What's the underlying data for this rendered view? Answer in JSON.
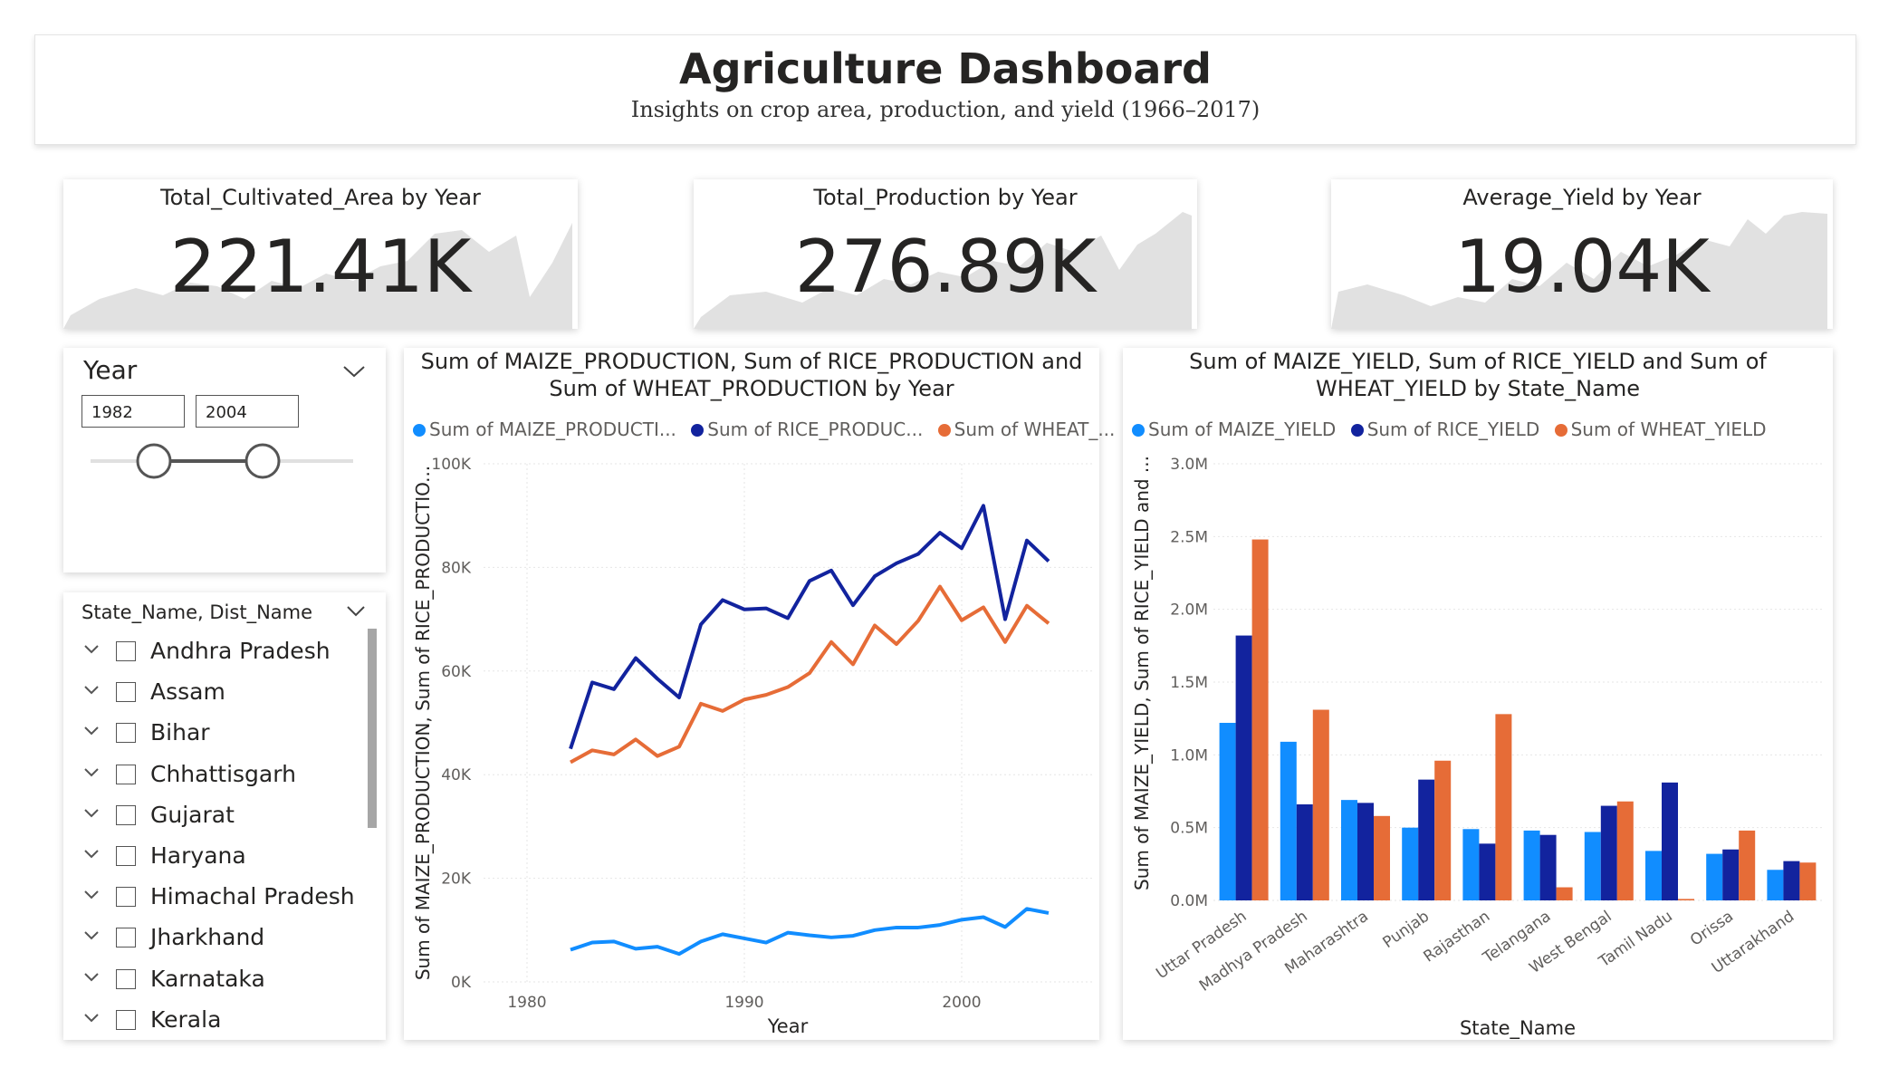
{
  "header": {
    "title": "Agriculture Dashboard",
    "subtitle": "Insights on crop area, production, and yield (1966–2017)"
  },
  "kpis": [
    {
      "title": "Total_Cultivated_Area by Year",
      "value": "221.41K"
    },
    {
      "title": "Total_Production by Year",
      "value": "276.89K"
    },
    {
      "title": "Average_Yield by Year",
      "value": "19.04K"
    }
  ],
  "year_slicer": {
    "title": "Year",
    "start": "1982",
    "end": "2004",
    "chevron_icon": "chevron-down-icon"
  },
  "state_slicer": {
    "title": "State_Name, Dist_Name",
    "items": [
      "Andhra Pradesh",
      "Assam",
      "Bihar",
      "Chhattisgarh",
      "Gujarat",
      "Haryana",
      "Himachal Pradesh",
      "Jharkhand",
      "Karnataka",
      "Kerala"
    ]
  },
  "line_chart": {
    "title_line1": "Sum of MAIZE_PRODUCTION, Sum of RICE_PRODUCTION and",
    "title_line2": "Sum of WHEAT_PRODUCTION by Year",
    "legend": [
      "Sum of MAIZE_PRODUCTI...",
      "Sum of RICE_PRODUC...",
      "Sum of WHEAT_..."
    ],
    "xlabel": "Year",
    "ylabel": "Sum of MAIZE_PRODUCTION, Sum of RICE_PRODUCTIO...",
    "yticks": [
      "0K",
      "20K",
      "40K",
      "60K",
      "80K",
      "100K"
    ],
    "xticks": [
      "1980",
      "1990",
      "2000"
    ]
  },
  "bar_chart": {
    "title_line1": "Sum of MAIZE_YIELD, Sum of RICE_YIELD and Sum of",
    "title_line2": "WHEAT_YIELD by State_Name",
    "legend": [
      "Sum of MAIZE_YIELD",
      "Sum of RICE_YIELD",
      "Sum of WHEAT_YIELD"
    ],
    "xlabel": "State_Name",
    "ylabel": "Sum of MAIZE_YIELD, Sum of RICE_YIELD and ...",
    "yticks": [
      "0.0M",
      "0.5M",
      "1.0M",
      "1.5M",
      "2.0M",
      "2.5M",
      "3.0M"
    ]
  },
  "colors": {
    "maize": "#118DFF",
    "rice": "#12239E",
    "wheat": "#E66C37",
    "spark": "#e1e1e1"
  },
  "chart_data": [
    {
      "type": "line",
      "x": [
        1982,
        1983,
        1984,
        1985,
        1986,
        1987,
        1988,
        1989,
        1990,
        1991,
        1992,
        1993,
        1994,
        1995,
        1996,
        1997,
        1998,
        1999,
        2000,
        2001,
        2002,
        2003,
        2004
      ],
      "xlim": [
        1978,
        2006
      ],
      "ylim": [
        0,
        100000
      ],
      "series": [
        {
          "name": "Sum of MAIZE_PRODUCTION",
          "values": [
            6200,
            7600,
            7800,
            6400,
            6800,
            5400,
            7800,
            9200,
            8400,
            7600,
            9500,
            9000,
            8600,
            8900,
            10000,
            10500,
            10500,
            11000,
            12000,
            12500,
            10600,
            14100,
            13300
          ]
        },
        {
          "name": "Sum of RICE_PRODUCTION",
          "values": [
            45000,
            57800,
            56500,
            62500,
            58500,
            54900,
            69000,
            73700,
            71900,
            72100,
            70200,
            77400,
            79400,
            72700,
            78300,
            80800,
            82600,
            86700,
            83700,
            91900,
            70000,
            85200,
            81200
          ]
        },
        {
          "name": "Sum of WHEAT_PRODUCTION",
          "values": [
            42400,
            44700,
            43900,
            46800,
            43600,
            45400,
            53700,
            52300,
            54500,
            55400,
            56900,
            59600,
            65600,
            61300,
            68800,
            65200,
            69700,
            76300,
            69800,
            72300,
            65600,
            72600,
            69200
          ]
        }
      ]
    },
    {
      "type": "bar",
      "categories": [
        "Uttar Pradesh",
        "Madhya Pradesh",
        "Maharashtra",
        "Punjab",
        "Rajasthan",
        "Telangana",
        "West Bengal",
        "Tamil Nadu",
        "Orissa",
        "Uttarakhand"
      ],
      "ylim": [
        0,
        3000000
      ],
      "series": [
        {
          "name": "Sum of MAIZE_YIELD",
          "values": [
            1220000,
            1090000,
            690000,
            500000,
            490000,
            480000,
            470000,
            340000,
            320000,
            210000
          ]
        },
        {
          "name": "Sum of RICE_YIELD",
          "values": [
            1820000,
            660000,
            670000,
            830000,
            390000,
            450000,
            650000,
            810000,
            350000,
            270000
          ]
        },
        {
          "name": "Sum of WHEAT_YIELD",
          "values": [
            2480000,
            1310000,
            580000,
            960000,
            1280000,
            90000,
            680000,
            10000,
            480000,
            260000
          ]
        }
      ]
    }
  ]
}
